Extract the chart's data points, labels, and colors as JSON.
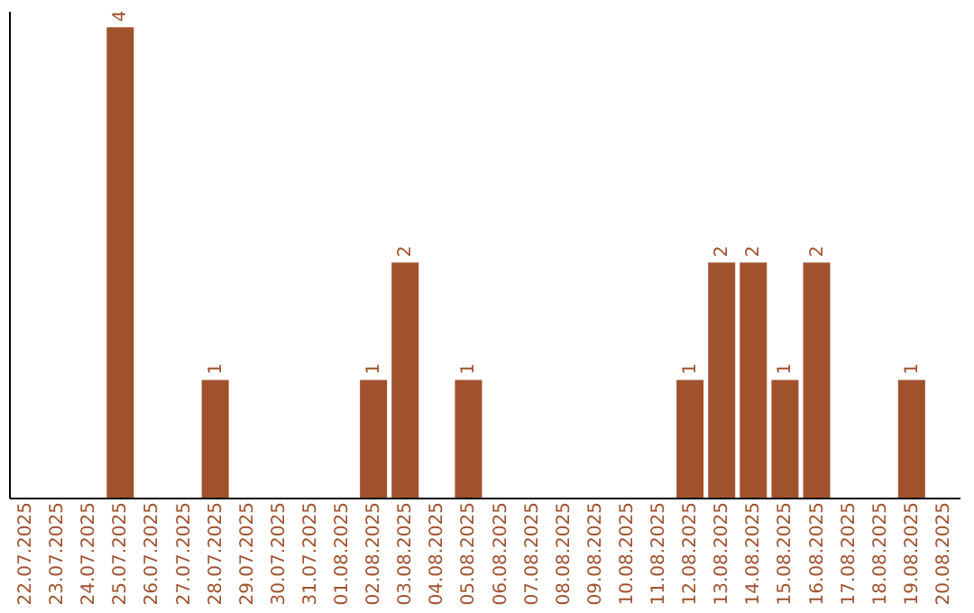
{
  "chart_data": {
    "type": "bar",
    "categories": [
      "22.07.2025",
      "23.07.2025",
      "24.07.2025",
      "25.07.2025",
      "26.07.2025",
      "27.07.2025",
      "28.07.2025",
      "29.07.2025",
      "30.07.2025",
      "31.07.2025",
      "01.08.2025",
      "02.08.2025",
      "03.08.2025",
      "04.08.2025",
      "05.08.2025",
      "06.08.2025",
      "07.08.2025",
      "08.08.2025",
      "09.08.2025",
      "10.08.2025",
      "11.08.2025",
      "12.08.2025",
      "13.08.2025",
      "14.08.2025",
      "15.08.2025",
      "16.08.2025",
      "17.08.2025",
      "18.08.2025",
      "19.08.2025",
      "20.08.2025"
    ],
    "values": [
      0,
      0,
      0,
      4,
      0,
      0,
      1,
      0,
      0,
      0,
      0,
      1,
      2,
      0,
      1,
      0,
      0,
      0,
      0,
      0,
      0,
      1,
      2,
      2,
      1,
      2,
      0,
      0,
      1,
      0
    ],
    "value_labels": [
      null,
      null,
      null,
      "4",
      null,
      null,
      "1",
      null,
      null,
      null,
      null,
      "1",
      "2",
      null,
      "1",
      null,
      null,
      null,
      null,
      null,
      null,
      "1",
      "2",
      "2",
      "1",
      "2",
      null,
      null,
      "1",
      null
    ],
    "color": "#a0522d",
    "tick_labels": "x",
    "grid": false
  }
}
